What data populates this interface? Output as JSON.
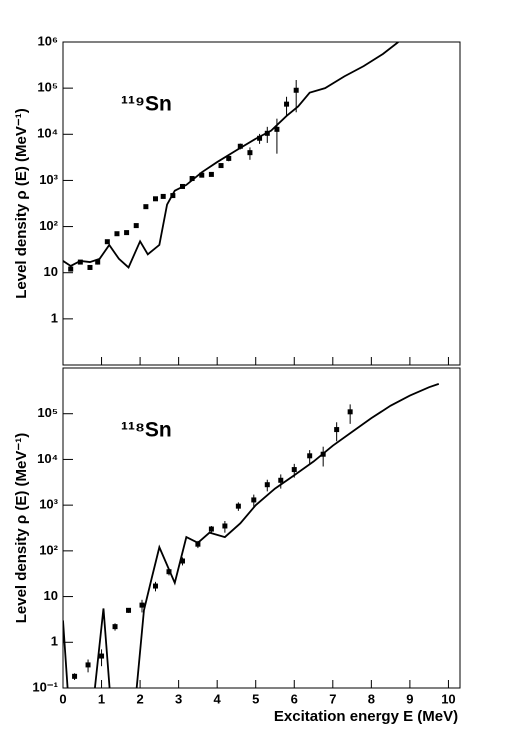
{
  "chart_data": [
    {
      "type": "log-scatter-line",
      "annotation": "¹¹⁹Sn",
      "ylabel": "Level density ρ (E) (MeV⁻¹)",
      "xlim": [
        0,
        10.3
      ],
      "xticks": [
        0,
        1,
        2,
        3,
        4,
        5,
        6,
        7,
        8,
        9,
        10
      ],
      "show_xtick_labels": false,
      "ylim": [
        0.1,
        1000000
      ],
      "log_y": true,
      "yticks": [
        1,
        10,
        {
          "value": 100,
          "label": "10²"
        },
        {
          "value": 1000,
          "label": "10³"
        },
        {
          "value": 10000,
          "label": "10⁴"
        },
        {
          "value": 100000,
          "label": "10⁵"
        },
        {
          "value": 1000000,
          "label": "10⁶"
        }
      ],
      "color": "#000000",
      "points": {
        "x": [
          0.2,
          0.45,
          0.7,
          0.9,
          1.15,
          1.4,
          1.65,
          1.9,
          2.15,
          2.4,
          2.6,
          2.85,
          3.1,
          3.35,
          3.6,
          3.85,
          4.1,
          4.3,
          4.6,
          4.85,
          5.1,
          5.3,
          5.55,
          5.8,
          6.05
        ],
        "values": [
          12,
          17,
          13,
          17,
          47,
          70,
          74,
          105,
          270,
          400,
          450,
          470,
          740,
          1100,
          1300,
          1350,
          2100,
          3000,
          5500,
          4000,
          8200,
          10500,
          12800,
          45000,
          90000
        ],
        "errors": [
          1,
          1.5,
          1.5,
          2,
          4,
          5,
          6,
          8,
          15,
          20,
          22,
          25,
          40,
          60,
          80,
          100,
          200,
          400,
          800,
          1200,
          2000,
          4000,
          9000,
          20000,
          60000
        ]
      },
      "line": {
        "x": [
          0,
          0.2,
          0.45,
          0.7,
          0.95,
          1.2,
          1.45,
          1.7,
          2.0,
          2.2,
          2.5,
          2.7,
          2.9,
          3.2,
          3.6,
          4.0,
          4.5,
          5.0,
          5.4,
          5.8,
          6.1,
          6.4,
          6.8,
          7.3,
          7.8,
          8.3,
          8.7
        ],
        "values": [
          18,
          14,
          18,
          17,
          20,
          40,
          20,
          13,
          48,
          25,
          40,
          300,
          600,
          800,
          1500,
          2500,
          4500,
          8000,
          12000,
          25000,
          40000,
          80000,
          100000,
          180000,
          300000,
          550000,
          1000000
        ]
      }
    },
    {
      "type": "log-scatter-line",
      "annotation": "¹¹⁸Sn",
      "ylabel": "Level density ρ (E) (MeV⁻¹)",
      "xlabel": "Excitation energy E (MeV)",
      "xlim": [
        0,
        10.3
      ],
      "xticks": [
        0,
        1,
        2,
        3,
        4,
        5,
        6,
        7,
        8,
        9,
        10
      ],
      "show_xtick_labels": true,
      "ylim": [
        0.1,
        1000000
      ],
      "log_y": true,
      "yticks": [
        {
          "value": 0.1,
          "label": "10⁻¹"
        },
        1,
        10,
        {
          "value": 100,
          "label": "10²"
        },
        {
          "value": 1000,
          "label": "10³"
        },
        {
          "value": 10000,
          "label": "10⁴"
        },
        {
          "value": 100000,
          "label": "10⁵"
        }
      ],
      "color": "#000000",
      "points": {
        "x": [
          0.3,
          0.65,
          1.0,
          1.35,
          1.7,
          2.05,
          2.4,
          2.75,
          3.1,
          3.5,
          3.85,
          4.2,
          4.55,
          4.95,
          5.3,
          5.65,
          6.0,
          6.4,
          6.75,
          7.1,
          7.45
        ],
        "values": [
          0.18,
          0.32,
          0.5,
          2.2,
          5,
          6.5,
          17,
          35,
          60,
          140,
          300,
          350,
          950,
          1300,
          2800,
          3500,
          6000,
          12000,
          13000,
          45000,
          110000
        ],
        "errors": [
          0.03,
          0.1,
          0.2,
          0.4,
          0.6,
          2,
          4,
          6,
          12,
          25,
          50,
          100,
          200,
          400,
          800,
          1200,
          2000,
          4000,
          6000,
          20000,
          50000
        ]
      },
      "line": {
        "x": [
          0,
          0.2,
          0.7,
          1.05,
          1.3,
          1.8,
          2.1,
          2.3,
          2.5,
          2.9,
          3.2,
          3.5,
          3.8,
          4.2,
          4.6,
          5.0,
          5.5,
          6.0,
          6.5,
          7.0,
          7.5,
          8.0,
          8.5,
          9.0,
          9.5,
          9.75
        ],
        "values": [
          3,
          0.01,
          0.01,
          5.5,
          0.01,
          0.01,
          5,
          25,
          120,
          20,
          200,
          150,
          250,
          200,
          400,
          1000,
          2300,
          4500,
          9000,
          20000,
          40000,
          80000,
          150000,
          250000,
          380000,
          450000
        ]
      }
    }
  ]
}
